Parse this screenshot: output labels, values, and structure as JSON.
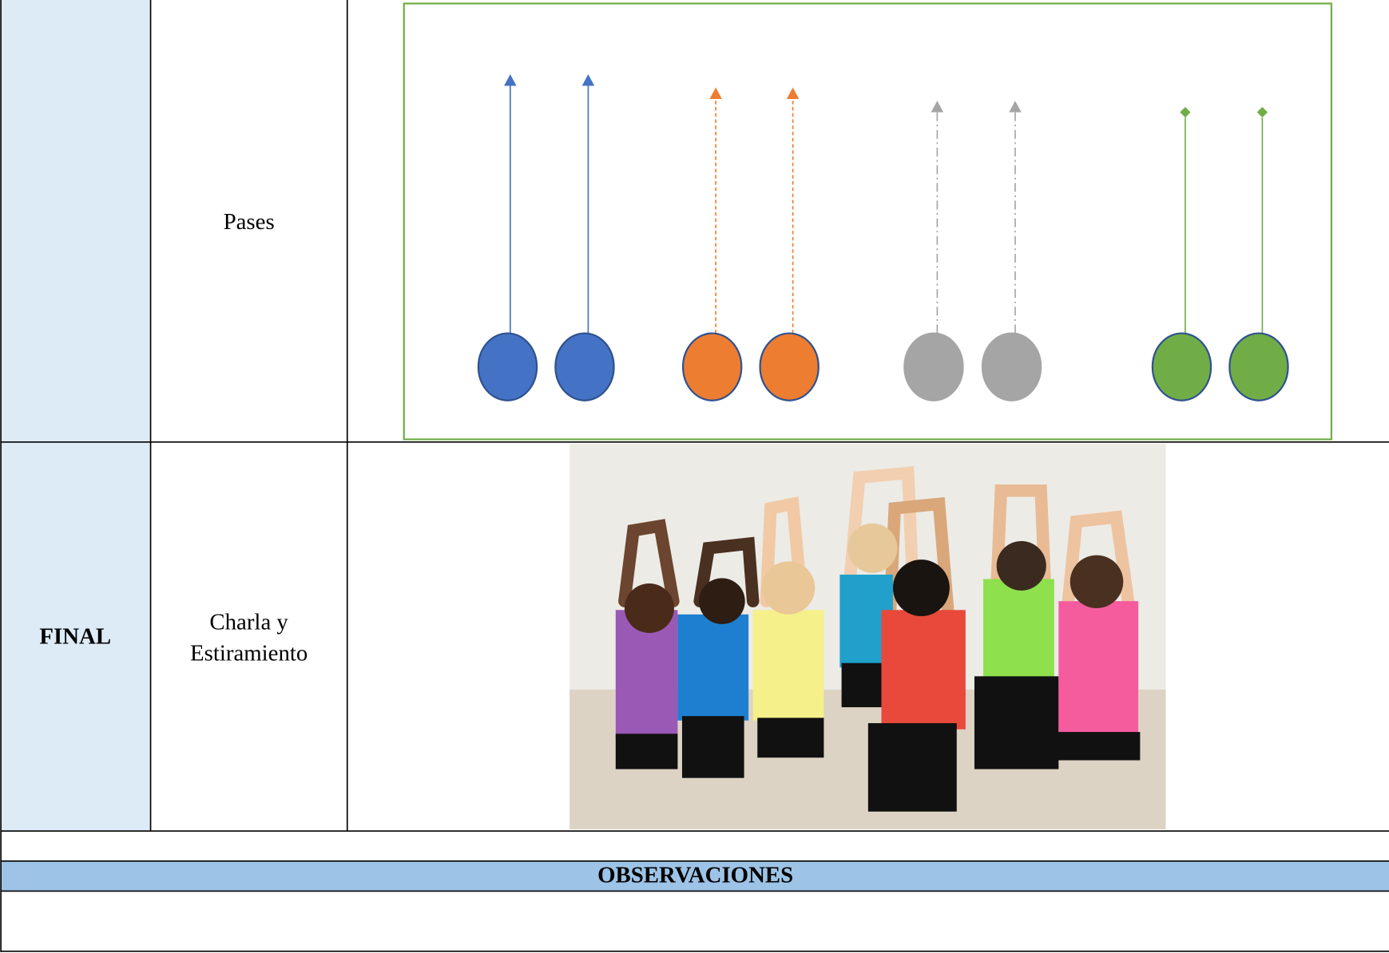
{
  "table": {
    "rows": [
      {
        "activity": "Pases"
      },
      {
        "phase": "FINAL",
        "activity": [
          "Charla y",
          "Estiramiento"
        ]
      }
    ],
    "observations": {
      "header": "OBSERVACIONES"
    }
  }
}
